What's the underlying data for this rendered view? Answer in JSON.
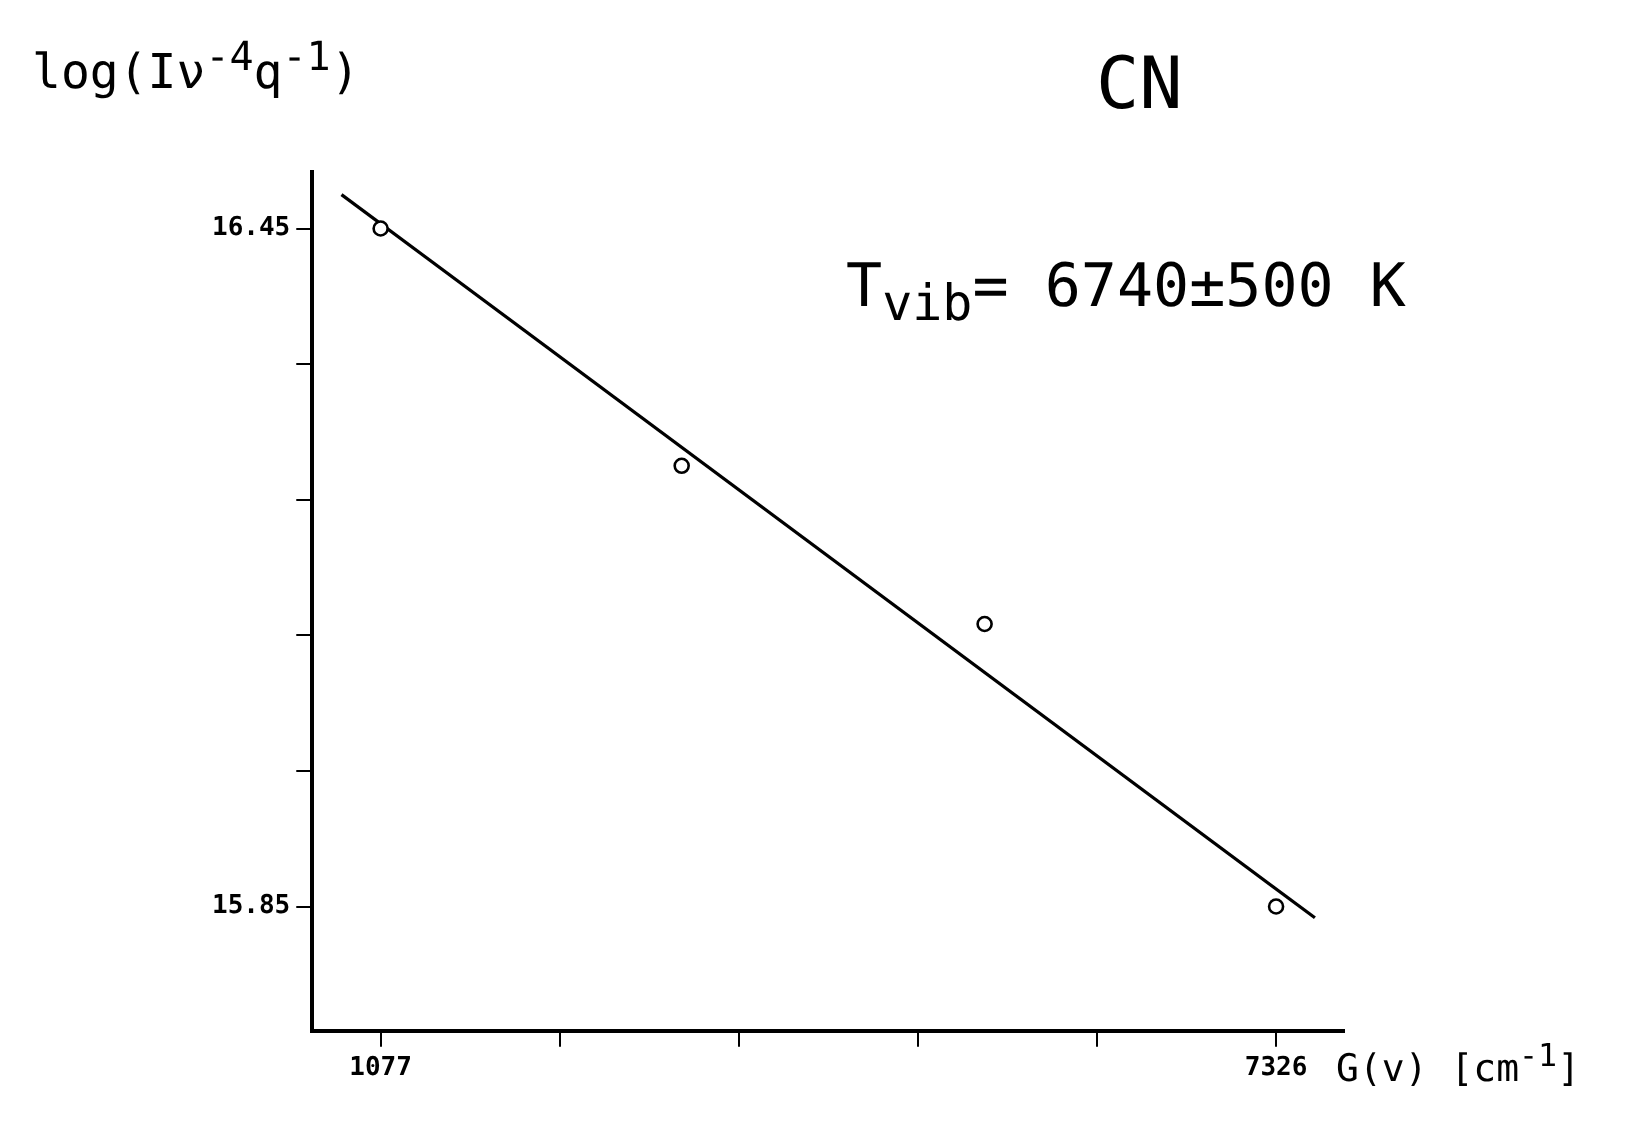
{
  "chart_data": {
    "type": "scatter",
    "title": "CN",
    "xlabel": "G(v) [cm$^{-1}$]",
    "ylabel": "log(Iν$^{-4}$q$^{-1}$)",
    "annotations": [
      "T$_{vib}$= 6740±500 K"
    ],
    "series": [
      {
        "type": "scatter",
        "color": "#000000",
        "marker": "circle",
        "x": [
          1077,
          3178,
          5292,
          7326
        ],
        "values": [
          16.45,
          16.24,
          16.1,
          15.85
        ]
      },
      {
        "type": "line",
        "color": "#000000",
        "marker": "none",
        "x": [
          804,
          7597
        ],
        "values": [
          16.48,
          15.84
        ]
      }
    ],
    "xlim": [
      600,
      7800
    ],
    "xticks": [
      1077,
      {
        "value": 2327,
        "label": null
      },
      {
        "value": 3577,
        "label": null
      },
      {
        "value": 4826,
        "label": null
      },
      {
        "value": 6076,
        "label": null
      },
      7326
    ],
    "ylim": [
      15.74,
      16.5
    ],
    "yticks": [
      15.85,
      {
        "value": 15.97,
        "label": null
      },
      {
        "value": 16.09,
        "label": null
      },
      {
        "value": 16.21,
        "label": null
      },
      {
        "value": 16.33,
        "label": null
      },
      16.45
    ],
    "grid": false,
    "legend": false
  }
}
